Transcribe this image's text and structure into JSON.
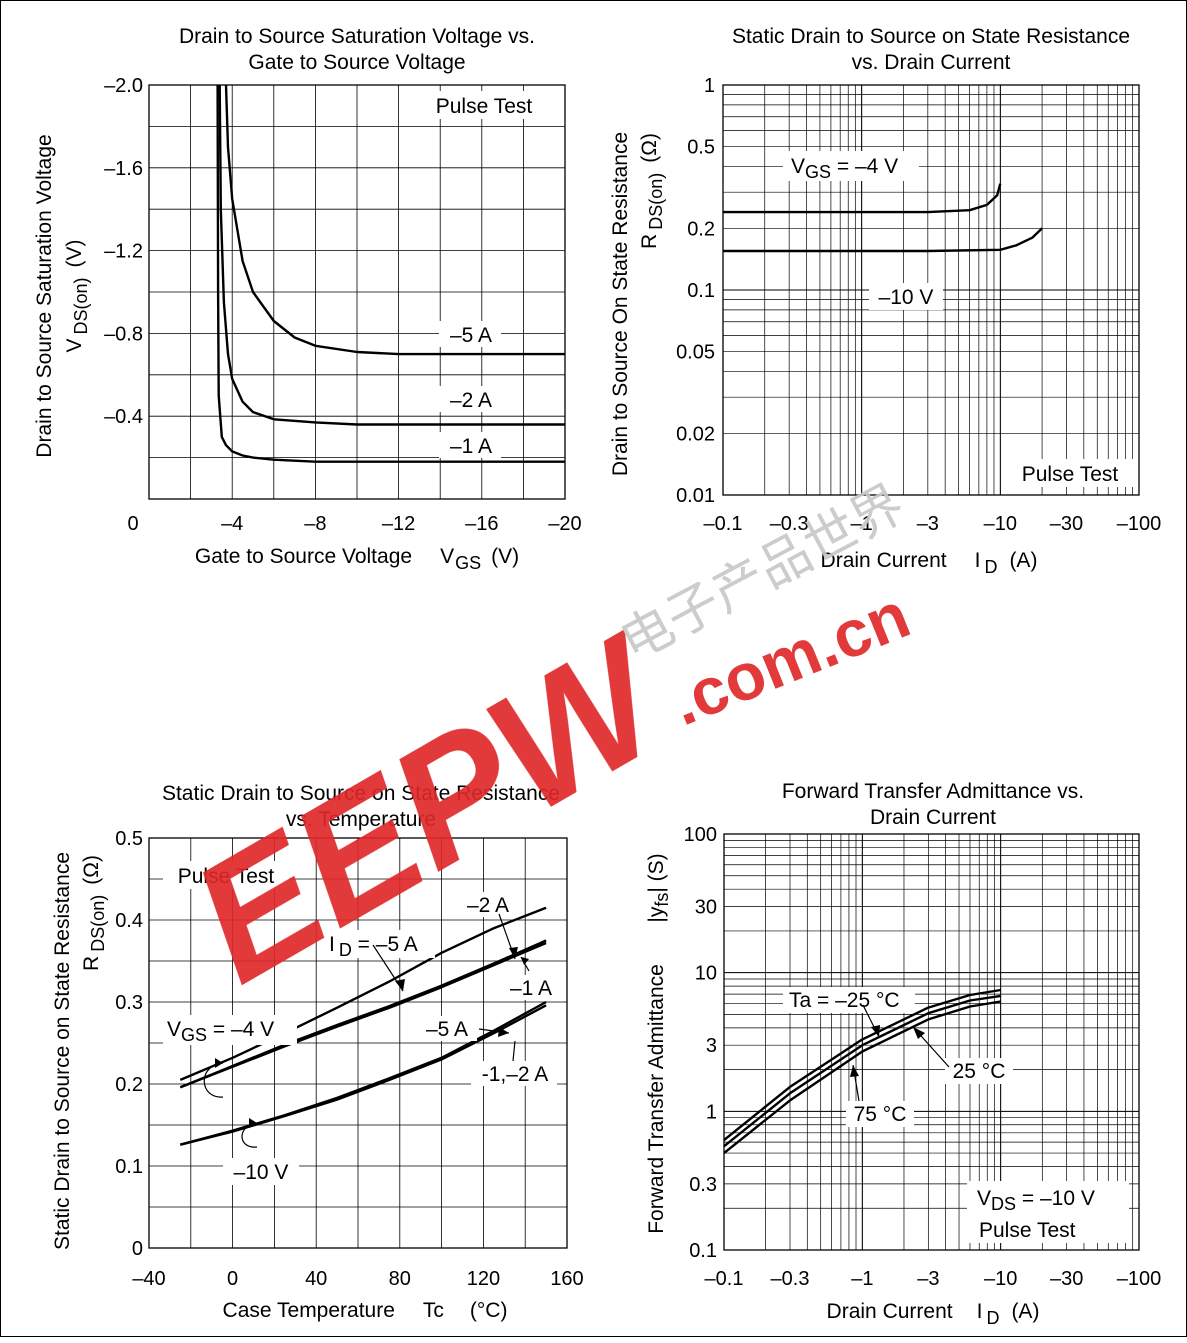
{
  "charts": {
    "c1": {
      "title1": "Drain to Source Saturation Voltage vs.",
      "title2": "Gate to Source Voltage",
      "ylabel_main": "Drain to Source Saturation Voltage",
      "ylabel_sym": "V",
      "ylabel_sub": "DS(on)",
      "ylabel_unit": "(V)",
      "xlabel_main": "Gate to Source Voltage",
      "xlabel_sym": "V",
      "xlabel_sub": "GS",
      "xlabel_unit": "(V)",
      "xticks": [
        "0",
        "–4",
        "–8",
        "–12",
        "–16",
        "–20"
      ],
      "yticks": [
        "–2.0",
        "–1.6",
        "–1.2",
        "–0.8",
        "–0.4"
      ],
      "note": "Pulse Test",
      "labels": [
        "–5 A",
        "–2 A",
        "–1 A"
      ]
    },
    "c2": {
      "title1": "Static Drain to Source on State Resistance",
      "title2": "vs. Drain Current",
      "ylabel_main": "Drain to Source On State Resistance",
      "ylabel_sym": "R",
      "ylabel_sub": "DS(on)",
      "ylabel_unit": "(Ω)",
      "xlabel_main": "Drain Current",
      "xlabel_sym": "I",
      "xlabel_sub": "D",
      "xlabel_unit": "(A)",
      "xticks": [
        "–0.1",
        "–0.3",
        "–1",
        "–3",
        "–10",
        "–30",
        "–100"
      ],
      "yticks": [
        "1",
        "0.5",
        "0.2",
        "0.1",
        "0.05",
        "0.02",
        "0.01"
      ],
      "note": "Pulse Test",
      "label_vgs_sym": "V",
      "label_vgs_sub": "GS",
      "label_vgs_val": " = –4 V",
      "label_10v": "–10 V"
    },
    "c3": {
      "title1": "Static Drain to Source on State Resistance",
      "title2": "vs. Temperature",
      "ylabel_main": "Static Drain to Source on State Resistance",
      "ylabel_sym": "R",
      "ylabel_sub": "DS(on)",
      "ylabel_unit": "(Ω)",
      "xlabel_main": "Case Temperature",
      "xlabel_sym": "Tc",
      "xlabel_unit": "(°C)",
      "xticks": [
        "–40",
        "0",
        "40",
        "80",
        "120",
        "160"
      ],
      "yticks": [
        "0.5",
        "0.4",
        "0.3",
        "0.2",
        "0.1",
        "0"
      ],
      "note": "Pulse Test",
      "label_id_sym": "I",
      "label_id_sub": "D",
      "label_id_val": " = –5 A",
      "label_2a": "–2 A",
      "label_1a": "–1 A",
      "label_5a": "–5 A",
      "label_12a": "-1,–2 A",
      "label_vgs_sym": "V",
      "label_vgs_sub": "GS",
      "label_vgs_val": " = –4 V",
      "label_10v": "–10 V"
    },
    "c4": {
      "title1": "Forward Transfer Admittance vs.",
      "title2": "Drain Current",
      "ylabel_main": "Forward Transfer Admittance",
      "ylabel_sym": "|y",
      "ylabel_sub": "fs",
      "ylabel_unit": "| (S)",
      "xlabel_main": "Drain Current",
      "xlabel_sym": "I",
      "xlabel_sub": "D",
      "xlabel_unit": "(A)",
      "xticks": [
        "–0.1",
        "–0.3",
        "–1",
        "–3",
        "–10",
        "–30",
        "–100"
      ],
      "yticks": [
        "100",
        "30",
        "10",
        "3",
        "1",
        "0.3",
        "0.1"
      ],
      "note_vds_sym": "V",
      "note_vds_sub": "DS",
      "note_vds_val": " = –10 V",
      "note": "Pulse Test",
      "label_ta": "Ta = –25 °C",
      "label_25": "25 °C",
      "label_75": "75 °C"
    }
  },
  "watermark": {
    "brand": "EEPW",
    "domain": ".com.cn",
    "cjk": "电子产品世界",
    "color": "#e0282a"
  },
  "chart_data": [
    {
      "type": "line",
      "title": "Drain to Source Saturation Voltage vs. Gate to Source Voltage",
      "xlabel": "Gate to Source Voltage VGS (V)",
      "ylabel": "Drain to Source Saturation Voltage VDS(on) (V)",
      "xlim": [
        0,
        -20
      ],
      "ylim": [
        0,
        -2.0
      ],
      "grid": true,
      "series": [
        {
          "name": "–5 A",
          "x": [
            -3.7,
            -3.8,
            -4,
            -4.5,
            -5,
            -6,
            -7,
            -8,
            -10,
            -12,
            -16,
            -20
          ],
          "y": [
            -2.0,
            -1.7,
            -1.45,
            -1.15,
            -1.0,
            -0.86,
            -0.78,
            -0.74,
            -0.71,
            -0.7,
            -0.7,
            -0.7
          ]
        },
        {
          "name": "–2 A",
          "x": [
            -3.4,
            -3.45,
            -3.6,
            -3.8,
            -4,
            -4.5,
            -5,
            -6,
            -8,
            -10,
            -12,
            -16,
            -20
          ],
          "y": [
            -2.0,
            -1.4,
            -0.95,
            -0.7,
            -0.58,
            -0.47,
            -0.42,
            -0.385,
            -0.37,
            -0.36,
            -0.36,
            -0.36,
            -0.36
          ]
        },
        {
          "name": "–1 A",
          "x": [
            -3.3,
            -3.32,
            -3.35,
            -3.5,
            -3.7,
            -4,
            -4.5,
            -5,
            -6,
            -8,
            -12,
            -16,
            -20
          ],
          "y": [
            -2.0,
            -1.0,
            -0.5,
            -0.3,
            -0.26,
            -0.23,
            -0.21,
            -0.2,
            -0.19,
            -0.18,
            -0.18,
            -0.18,
            -0.18
          ]
        }
      ]
    },
    {
      "type": "line",
      "title": "Static Drain to Source on State Resistance vs. Drain Current",
      "xlabel": "Drain Current ID (A)",
      "ylabel": "Drain to Source On State Resistance RDS(on) (Ω)",
      "xscale": "log",
      "yscale": "log",
      "xlim": [
        -0.1,
        -100
      ],
      "ylim": [
        0.01,
        1
      ],
      "grid": true,
      "series": [
        {
          "name": "VGS = –4 V",
          "x": [
            -0.1,
            -0.3,
            -1,
            -3,
            -6,
            -8,
            -9.5,
            -10
          ],
          "y": [
            0.24,
            0.24,
            0.24,
            0.24,
            0.245,
            0.26,
            0.29,
            0.33
          ]
        },
        {
          "name": "–10 V",
          "x": [
            -0.1,
            -0.3,
            -1,
            -3,
            -10,
            -13,
            -17,
            -20
          ],
          "y": [
            0.155,
            0.155,
            0.155,
            0.155,
            0.157,
            0.165,
            0.18,
            0.2
          ]
        }
      ]
    },
    {
      "type": "line",
      "title": "Static Drain to Source on State Resistance vs. Temperature",
      "xlabel": "Case Temperature Tc (°C)",
      "ylabel": "Static Drain to Source on State Resistance RDS(on) (Ω)",
      "xlim": [
        -40,
        160
      ],
      "ylim": [
        0,
        0.5
      ],
      "grid": true,
      "series": [
        {
          "name": "VGS = –4 V, ID = –2 A",
          "x": [
            -25,
            0,
            25,
            50,
            75,
            100,
            125,
            150
          ],
          "y": [
            0.205,
            0.232,
            0.262,
            0.293,
            0.325,
            0.36,
            0.39,
            0.415
          ]
        },
        {
          "name": "VGS = –4 V, ID = –5 A",
          "x": [
            -25,
            0,
            25,
            50,
            75,
            100,
            125,
            150
          ],
          "y": [
            0.196,
            0.222,
            0.248,
            0.272,
            0.295,
            0.32,
            0.347,
            0.375
          ]
        },
        {
          "name": "VGS = –4 V, ID = –1 A",
          "x": [
            -25,
            0,
            25,
            50,
            75,
            100,
            125,
            150
          ],
          "y": [
            0.196,
            0.221,
            0.246,
            0.27,
            0.293,
            0.318,
            0.345,
            0.372
          ]
        },
        {
          "name": "VGS = –10 V, ID = –5 A",
          "x": [
            -25,
            0,
            25,
            50,
            75,
            100,
            125,
            150
          ],
          "y": [
            0.126,
            0.143,
            0.162,
            0.183,
            0.207,
            0.232,
            0.265,
            0.3
          ]
        },
        {
          "name": "VGS = –10 V, ID = –1,–2 A",
          "x": [
            -25,
            0,
            25,
            50,
            75,
            100,
            125,
            150
          ],
          "y": [
            0.126,
            0.142,
            0.161,
            0.181,
            0.205,
            0.23,
            0.262,
            0.296
          ]
        }
      ]
    },
    {
      "type": "line",
      "title": "Forward Transfer Admittance vs. Drain Current",
      "xlabel": "Drain Current ID (A)",
      "ylabel": "Forward Transfer Admittance |yfs| (S)",
      "xscale": "log",
      "yscale": "log",
      "xlim": [
        -0.1,
        -100
      ],
      "ylim": [
        0.1,
        100
      ],
      "grid": true,
      "series": [
        {
          "name": "Ta = –25 °C",
          "x": [
            -0.1,
            -0.3,
            -1,
            -3,
            -6,
            -10
          ],
          "y": [
            0.62,
            1.5,
            3.3,
            5.6,
            6.9,
            7.5
          ]
        },
        {
          "name": "25 °C",
          "x": [
            -0.1,
            -0.3,
            -1,
            -3,
            -6,
            -10
          ],
          "y": [
            0.56,
            1.35,
            3.0,
            5.1,
            6.3,
            6.8
          ]
        },
        {
          "name": "75 °C",
          "x": [
            -0.1,
            -0.3,
            -1,
            -3,
            -6,
            -10
          ],
          "y": [
            0.5,
            1.2,
            2.7,
            4.6,
            5.7,
            6.2
          ]
        }
      ]
    }
  ]
}
